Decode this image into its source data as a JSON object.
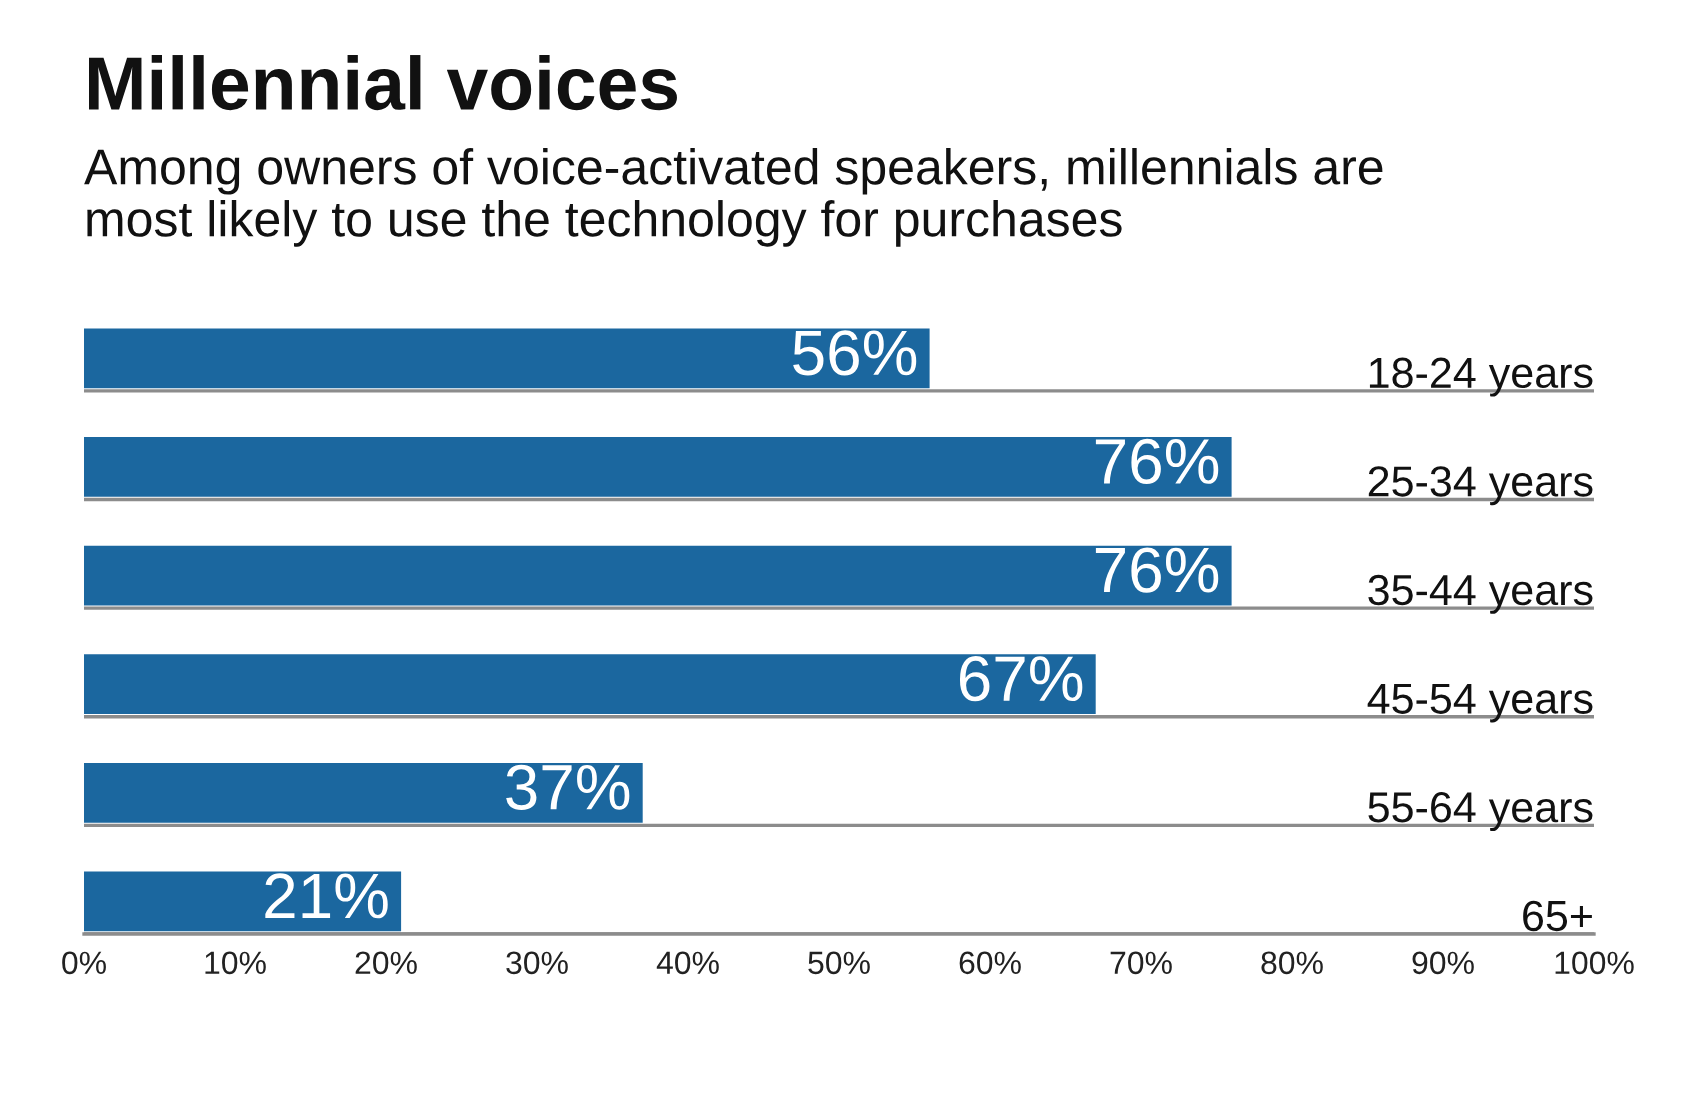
{
  "chart_data": {
    "type": "bar",
    "orientation": "horizontal",
    "title": "Millennial voices",
    "subtitle": "Among owners of voice-activated speakers, millennials are\nmost likely to use the technology for purchases",
    "categories": [
      "18-24 years",
      "25-34 years",
      "35-44 years",
      "45-54 years",
      "55-64 years",
      "65+"
    ],
    "values": [
      56,
      76,
      76,
      67,
      37,
      21
    ],
    "value_labels": [
      "56%",
      "76%",
      "76%",
      "67%",
      "37%",
      "21%"
    ],
    "color": "#1b679f",
    "xlim": [
      0,
      100
    ],
    "xticks": [
      {
        "value": 0,
        "label": "0%"
      },
      {
        "value": 10,
        "label": "10%"
      },
      {
        "value": 20,
        "label": "20%"
      },
      {
        "value": 30,
        "label": "30%"
      },
      {
        "value": 40,
        "label": "40%"
      },
      {
        "value": 50,
        "label": "50%"
      },
      {
        "value": 60,
        "label": "60%"
      },
      {
        "value": 70,
        "label": "70%"
      },
      {
        "value": 80,
        "label": "80%"
      },
      {
        "value": 90,
        "label": "90%"
      },
      {
        "value": 100,
        "label": "100%"
      }
    ],
    "grid": "y",
    "legend": false
  }
}
